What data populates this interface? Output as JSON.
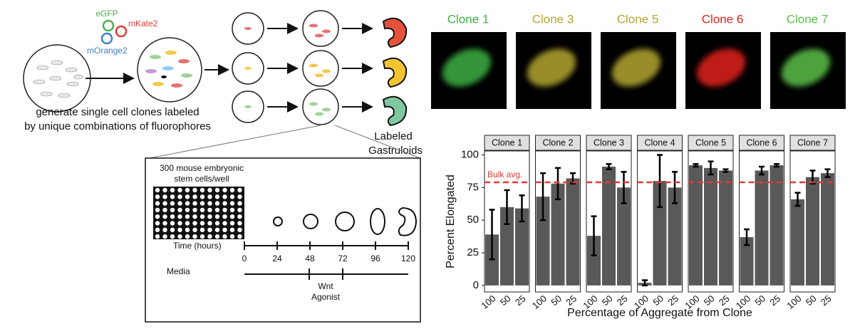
{
  "schematic": {
    "fluorophores": [
      {
        "name": "eGFP",
        "color": "#4caf50"
      },
      {
        "name": "mKate2",
        "color": "#e53935"
      },
      {
        "name": "mOrange2",
        "color": "#3f7fc4"
      }
    ],
    "caption": [
      "generate single cell clones labeled",
      "by unique combinations of fluorophores"
    ],
    "result": [
      "Labeled",
      "Gastruloids"
    ],
    "protocol": {
      "plate": [
        "300 mouse embryonic",
        "stem cells/well"
      ],
      "time_label": "Time (hours)",
      "times": [
        "0",
        "24",
        "48",
        "72",
        "96",
        "120"
      ],
      "media": "Media",
      "agonist": [
        "Wnt",
        "Agonist"
      ]
    }
  },
  "images": [
    {
      "title": "Clone 1",
      "color": "#3cb043"
    },
    {
      "title": "Clone 3",
      "color": "#b3a630"
    },
    {
      "title": "Clone 5",
      "color": "#b3a630"
    },
    {
      "title": "Clone 6",
      "color": "#e2231a"
    },
    {
      "title": "Clone 7",
      "color": "#5cbf4a"
    }
  ],
  "chart_data": {
    "type": "bar",
    "ylabel": "Percent Elongated",
    "xlabel": "Percentage of Aggregate from Clone",
    "categories": [
      "100",
      "50",
      "25"
    ],
    "color": "#595959",
    "ylim": [
      -5,
      103
    ],
    "yticks": [
      0,
      25,
      50,
      75,
      100
    ],
    "reference": {
      "label": "Bulk avg.",
      "value": 79,
      "color": "#e53935"
    },
    "series": [
      {
        "name": "Clone 1",
        "values": [
          39,
          60,
          59
        ],
        "errors": [
          19,
          13,
          10
        ]
      },
      {
        "name": "Clone 2",
        "values": [
          68,
          78,
          82
        ],
        "errors": [
          18,
          12,
          4
        ]
      },
      {
        "name": "Clone 3",
        "values": [
          38,
          91,
          75
        ],
        "errors": [
          15,
          2,
          12
        ]
      },
      {
        "name": "Clone 4",
        "values": [
          2,
          80,
          75
        ],
        "errors": [
          2,
          20,
          12
        ]
      },
      {
        "name": "Clone 5",
        "values": [
          92,
          90,
          88
        ],
        "errors": [
          1,
          5,
          1
        ]
      },
      {
        "name": "Clone 6",
        "values": [
          37,
          88,
          92
        ],
        "errors": [
          6,
          3,
          1
        ]
      },
      {
        "name": "Clone 7",
        "values": [
          66,
          83,
          86
        ],
        "errors": [
          5,
          5,
          3
        ]
      }
    ]
  }
}
